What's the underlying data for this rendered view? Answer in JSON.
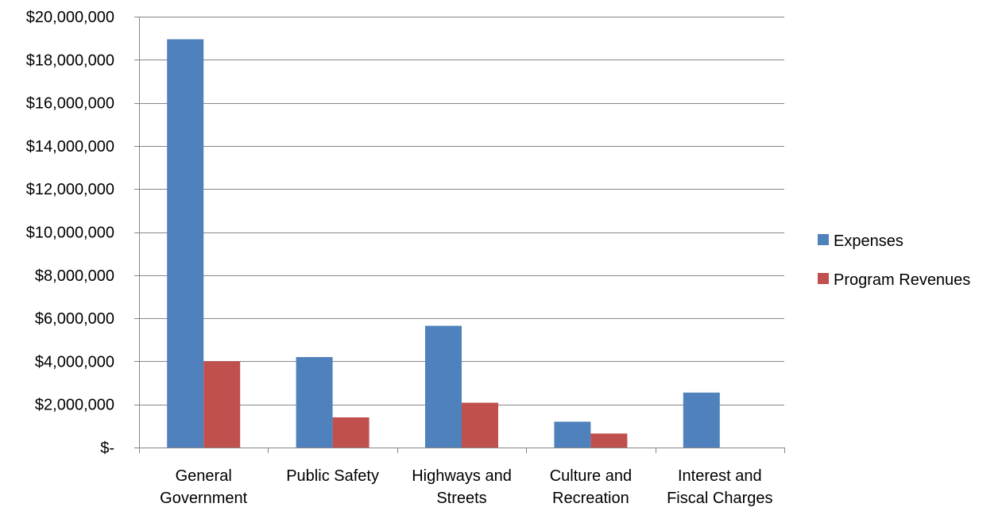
{
  "chart_data": {
    "type": "bar",
    "title": "",
    "xlabel": "",
    "ylabel": "",
    "categories": [
      [
        "General",
        "Government"
      ],
      [
        "Public Safety"
      ],
      [
        "Highways and",
        "Streets"
      ],
      [
        "Culture and",
        "Recreation"
      ],
      [
        "Interest and",
        "Fiscal Charges"
      ]
    ],
    "series": [
      {
        "name": "Expenses",
        "color": "#4F81BD",
        "values": [
          18950000,
          4200000,
          5650000,
          1200000,
          2550000
        ]
      },
      {
        "name": "Program Revenues",
        "color": "#C0504D",
        "values": [
          4000000,
          1400000,
          2080000,
          650000,
          0
        ]
      }
    ],
    "ylim": [
      0,
      20000000
    ],
    "yticks": [
      0,
      2000000,
      4000000,
      6000000,
      8000000,
      10000000,
      12000000,
      14000000,
      16000000,
      18000000,
      20000000
    ],
    "ytick_labels": [
      "$-",
      "$2,000,000",
      "$4,000,000",
      "$6,000,000",
      "$8,000,000",
      "$10,000,000",
      "$12,000,000",
      "$14,000,000",
      "$16,000,000",
      "$18,000,000",
      "$20,000,000"
    ],
    "grid": true,
    "legend_position": "right"
  }
}
